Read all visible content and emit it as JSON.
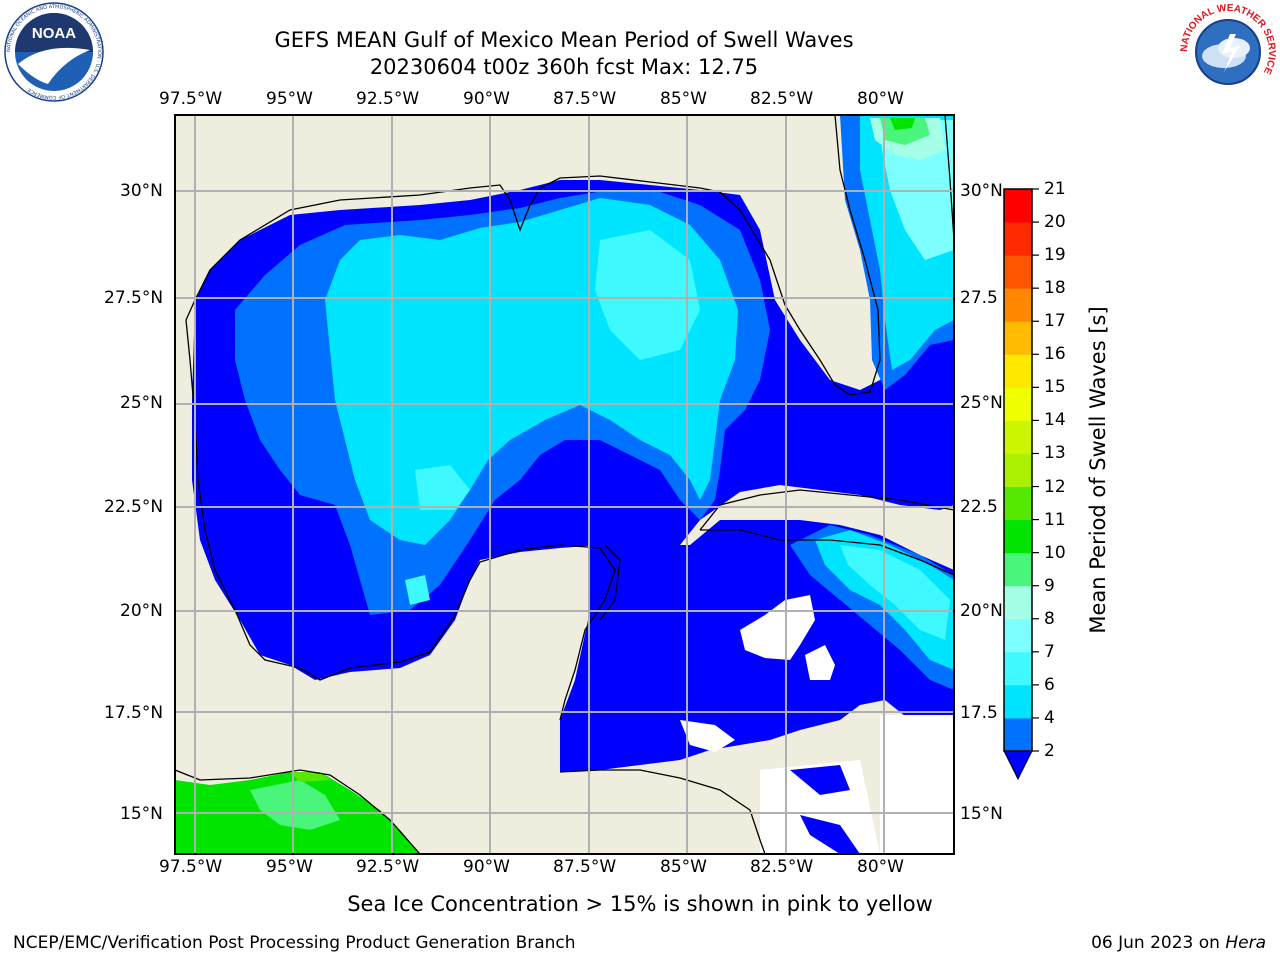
{
  "header": {
    "title_line1": "GEFS MEAN Gulf of Mexico Mean Period of Swell Waves",
    "title_line2": "20230604 t00z 360h fcst   Max: 12.75",
    "left_logo_text": "NOAA",
    "left_logo_ring_text": "NATIONAL OCEANIC AND ATMOSPHERIC ADMINISTRATION · U.S. DEPARTMENT OF COMMERCE",
    "right_logo_ring_text": "NATIONAL WEATHER SERVICE"
  },
  "map": {
    "projection": "cylindrical",
    "lon_range": [
      -98.5,
      -78.7
    ],
    "lat_range": [
      14.0,
      31.8
    ],
    "lon_ticks": [
      "97.5°W",
      "95°W",
      "92.5°W",
      "90°W",
      "87.5°W",
      "85°W",
      "82.5°W",
      "80°W"
    ],
    "lat_ticks_left": [
      "30°N",
      "27.5°N",
      "25°N",
      "22.5°N",
      "20°N",
      "17.5°N",
      "15°N"
    ],
    "lat_ticks_right": [
      "30°N",
      "27.5",
      "25°N",
      "22.5",
      "20°N",
      "17.5",
      "15°N"
    ],
    "gridlines": true,
    "land_color": "#efedde",
    "ocean_no_data_color": "#ffffff"
  },
  "colorbar": {
    "label": "Mean Period of Swell Waves [s]",
    "levels": [
      "2",
      "4",
      "6",
      "7",
      "8",
      "9",
      "10",
      "11",
      "12",
      "13",
      "14",
      "15",
      "16",
      "17",
      "18",
      "19",
      "20",
      "21"
    ],
    "colors": [
      "#0000ff",
      "#0072ff",
      "#00e5ff",
      "#3ef9ff",
      "#7dffff",
      "#a5ffe6",
      "#49f57a",
      "#00e400",
      "#55e800",
      "#aaf000",
      "#ccf500",
      "#eeff00",
      "#ffe800",
      "#ffbb00",
      "#ff8800",
      "#ff5500",
      "#ff2a00",
      "#ff0000"
    ],
    "extend": "min"
  },
  "notes": {
    "sea_ice": "Sea Ice Concentration > 15% is shown in pink to yellow"
  },
  "footer": {
    "left": "NCEP/EMC/Verification Post Processing Product Generation Branch",
    "date": "06 Jun 2023 on ",
    "machine": "Hera"
  }
}
